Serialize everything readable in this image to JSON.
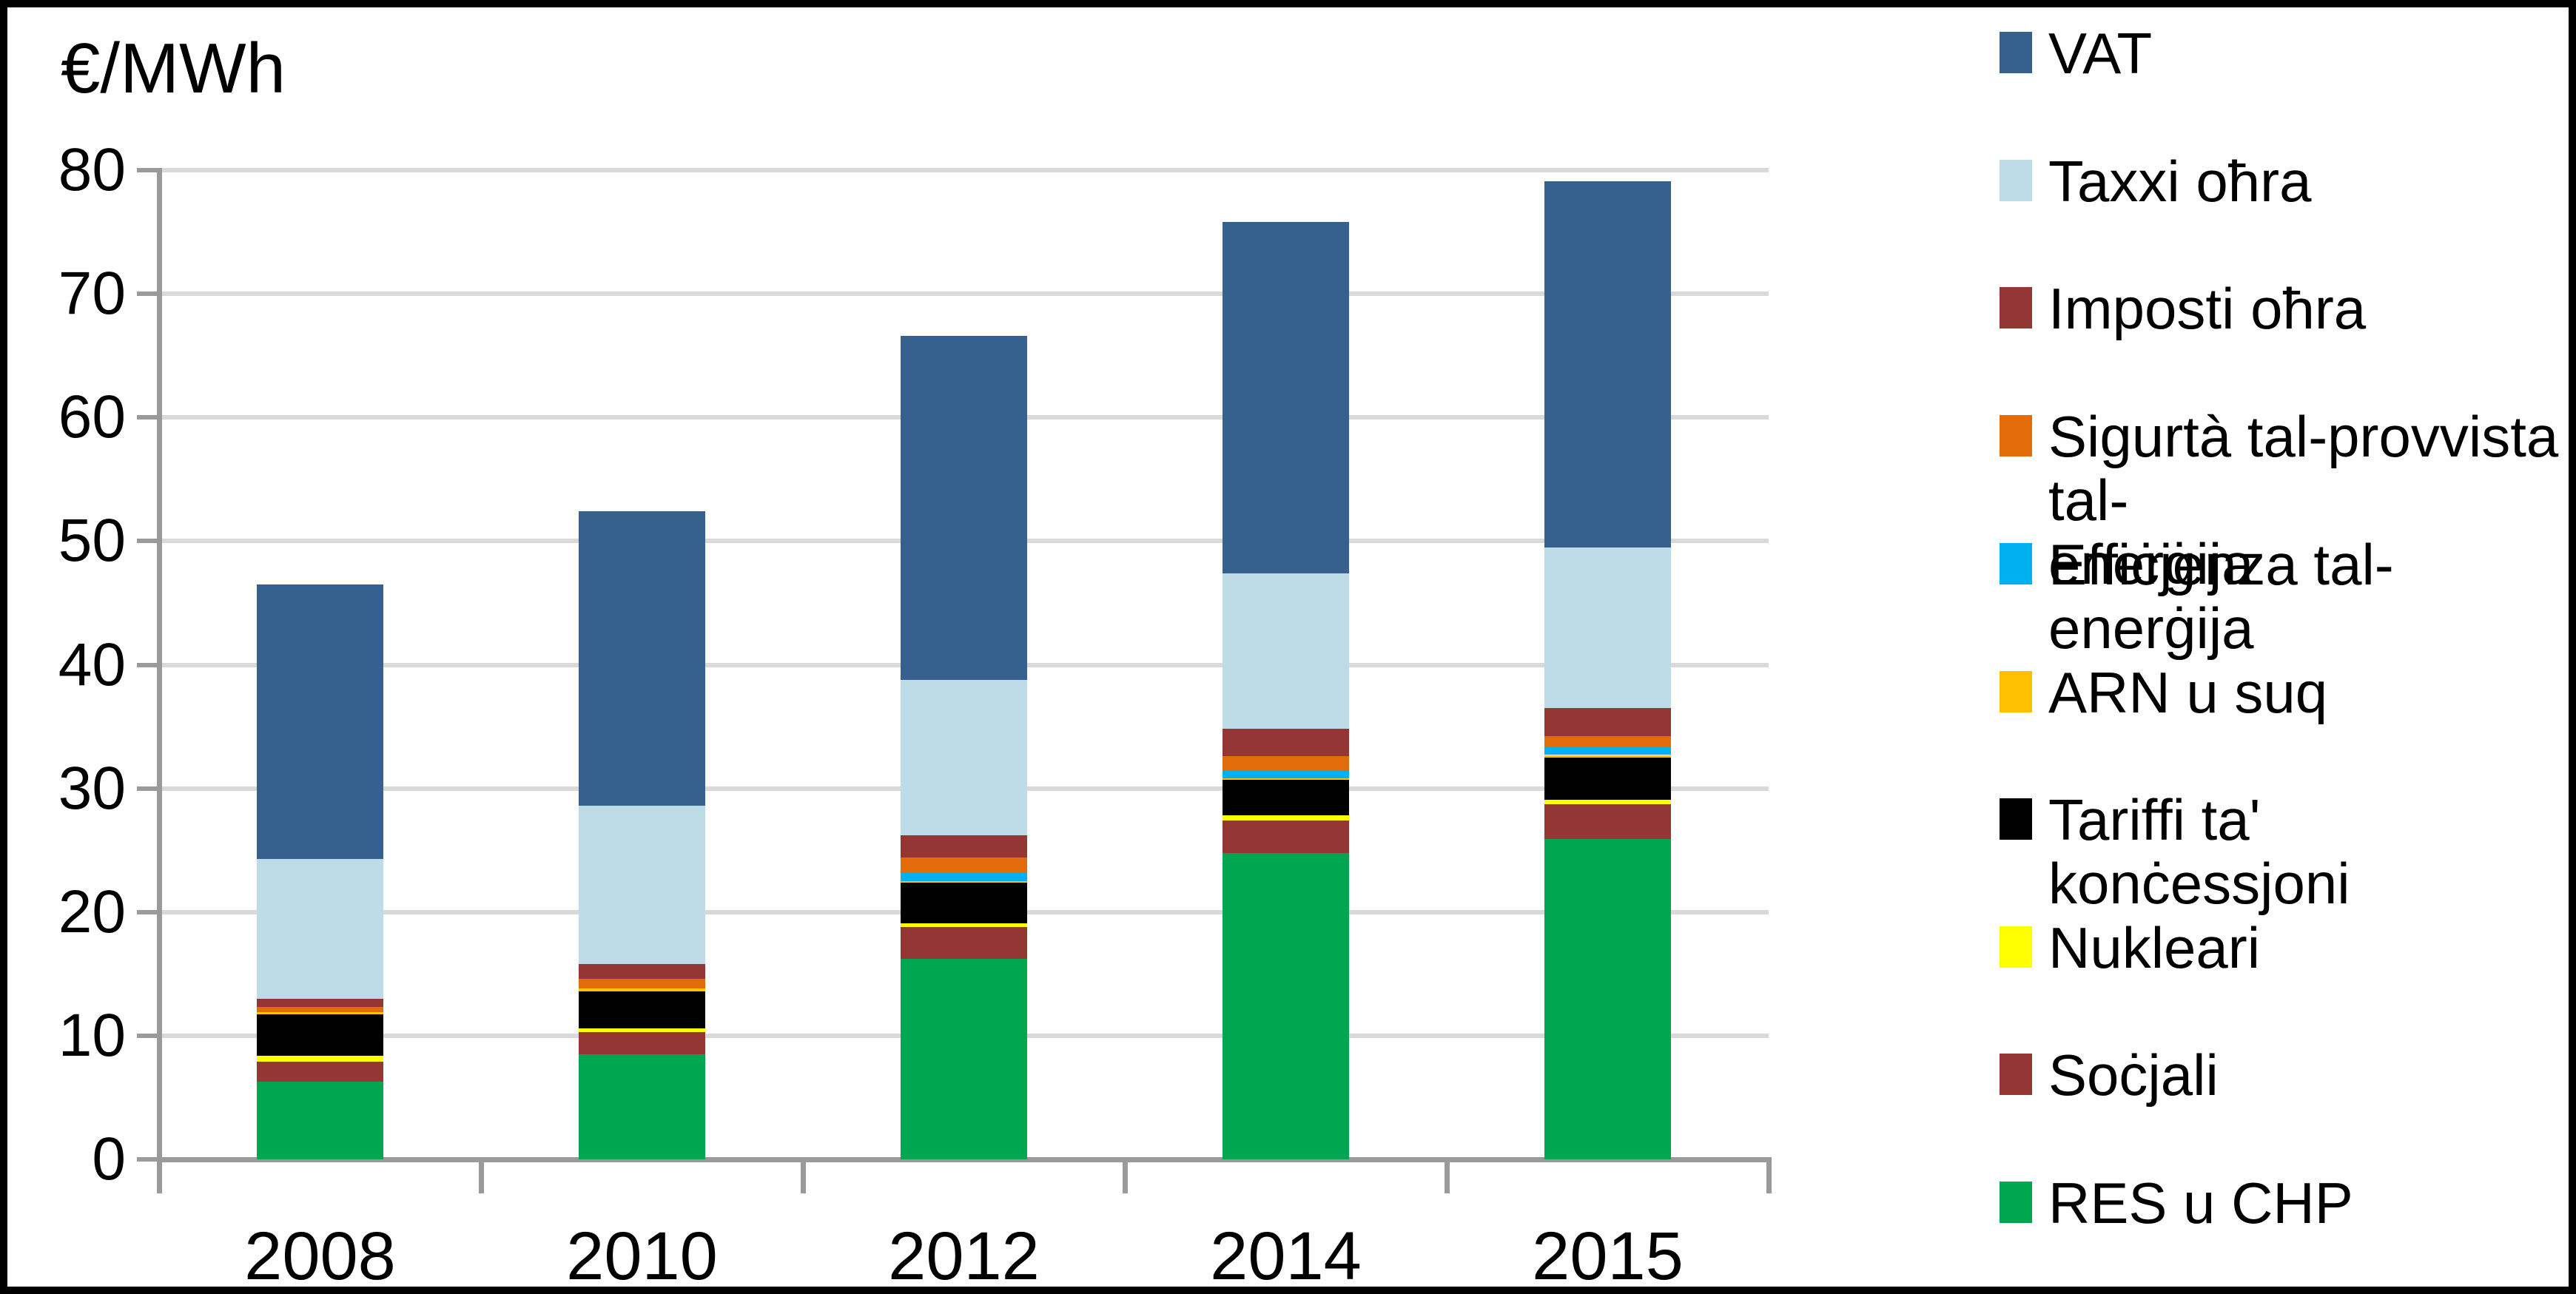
{
  "chart_title": "€/MWh",
  "chart_data": {
    "type": "bar",
    "stacked": true,
    "title": "€/MWh",
    "ylabel": "€/MWh",
    "xlabel": "",
    "categories": [
      "2008",
      "2010",
      "2012",
      "2014",
      "2015"
    ],
    "series": [
      {
        "name": "RES u CHP",
        "color": "#00A650",
        "values": [
          6.3,
          8.5,
          16.2,
          24.8,
          25.9
        ]
      },
      {
        "name": "Soċjali",
        "color": "#943634",
        "values": [
          1.6,
          1.8,
          2.6,
          2.6,
          2.8
        ]
      },
      {
        "name": "Nukleari",
        "color": "#FFFF00",
        "values": [
          0.5,
          0.3,
          0.3,
          0.4,
          0.4
        ]
      },
      {
        "name": "Tariffi ta' konċessjoni",
        "color": "#000000",
        "values": [
          3.3,
          3.0,
          3.3,
          2.9,
          3.4
        ]
      },
      {
        "name": "ARN u suq",
        "color": "#FFC000",
        "values": [
          0.2,
          0.2,
          0.1,
          0.1,
          0.2
        ]
      },
      {
        "name": "Effiċjenza tal-enerġija",
        "color": "#00B0F0",
        "values": [
          0.0,
          0.0,
          0.7,
          0.6,
          0.7
        ]
      },
      {
        "name": "Sigurtà tal-provvista tal-enerġija",
        "color": "#E36C0A",
        "values": [
          0.4,
          0.8,
          1.2,
          1.2,
          0.8
        ]
      },
      {
        "name": "Imposti oħra",
        "color": "#943634",
        "values": [
          0.7,
          1.2,
          1.8,
          2.2,
          2.3
        ]
      },
      {
        "name": "Taxxi oħra",
        "color": "#BDDCE8",
        "values": [
          11.3,
          12.8,
          12.6,
          12.6,
          13.0
        ]
      },
      {
        "name": "VAT",
        "color": "#36618F",
        "values": [
          22.2,
          23.8,
          27.8,
          28.4,
          29.6
        ]
      }
    ],
    "totals": [
      46.5,
      52.4,
      66.6,
      75.8,
      79.1
    ],
    "ylim": [
      0,
      80
    ],
    "ytick_step": 10,
    "yticks": [
      0,
      10,
      20,
      30,
      40,
      50,
      60,
      70,
      80
    ],
    "grid": "horizontal",
    "legend_position": "right"
  },
  "legend": {
    "items": [
      {
        "label": "VAT",
        "color": "#36618F"
      },
      {
        "label": "Taxxi oħra",
        "color": "#BDDCE8"
      },
      {
        "label": "Imposti oħra",
        "color": "#943634"
      },
      {
        "label": "Sigurtà tal-provvista tal-\nenerġija",
        "color": "#E36C0A"
      },
      {
        "label": "Effiċjenza tal-enerġija",
        "color": "#00B0F0"
      },
      {
        "label": "ARN u suq",
        "color": "#FFC000"
      },
      {
        "label": "Tariffi ta' konċessjoni",
        "color": "#000000"
      },
      {
        "label": "Nukleari",
        "color": "#FFFF00"
      },
      {
        "label": "Soċjali",
        "color": "#943634"
      },
      {
        "label": "RES u CHP",
        "color": "#00A650"
      }
    ]
  },
  "colors": {
    "gridline": "#D9D9D9",
    "axis": "#9A9A9A",
    "background": "#FFFFFF",
    "border": "#000000"
  }
}
